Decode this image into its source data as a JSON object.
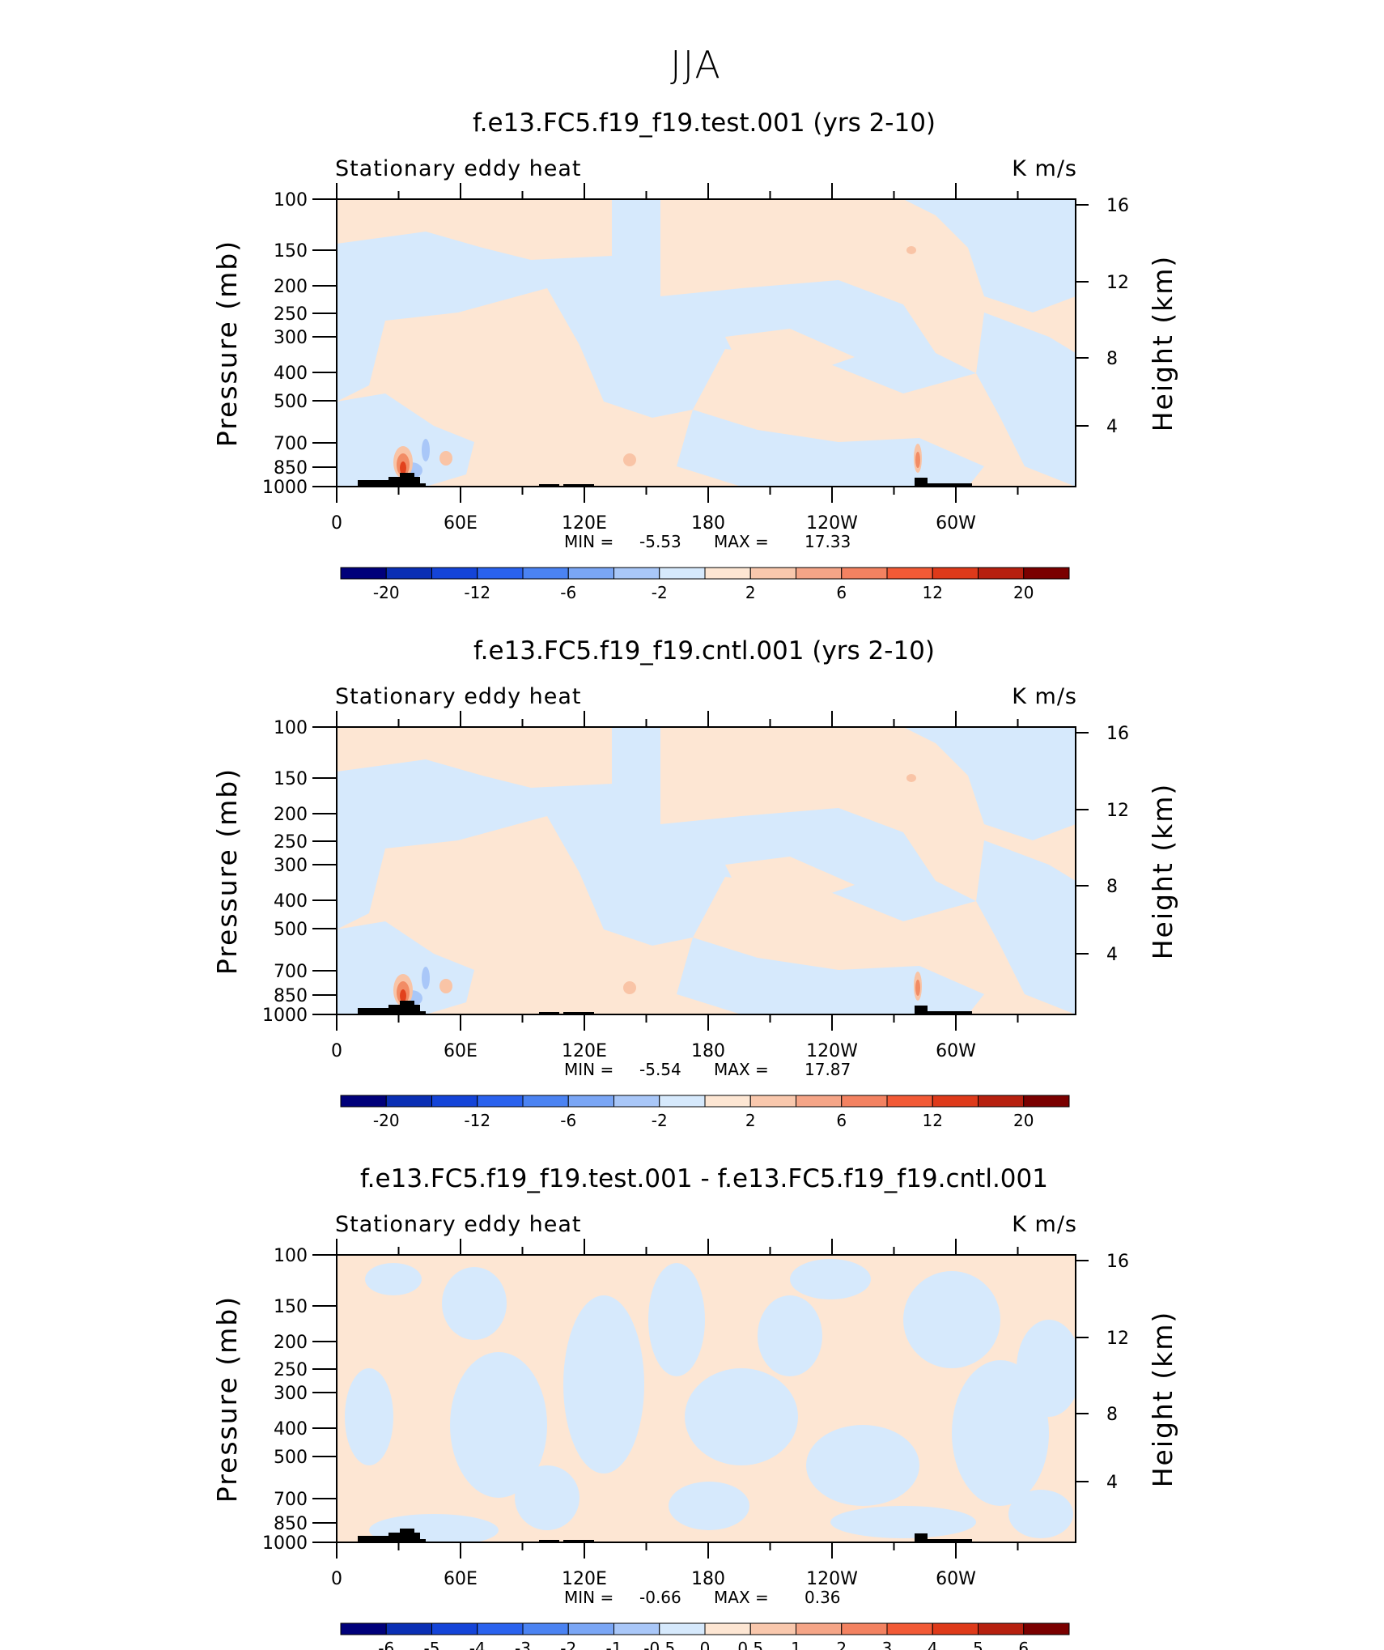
{
  "page_title": "JJA",
  "colors": {
    "blue_light": "#d6e9fc",
    "peach_light": "#fde6d3",
    "peach_mid": "#f9c4a6",
    "orange_mid": "#f28c65",
    "red_core": "#e2421d",
    "terrain": "#000000"
  },
  "colorbar_main": {
    "colors": [
      "#00007a",
      "#0a2fb4",
      "#1444d8",
      "#2a62ee",
      "#4b83f2",
      "#7aa6f5",
      "#a9c7f8",
      "#d6e9fc",
      "#fde6d3",
      "#f9c8ad",
      "#f5a587",
      "#f38261",
      "#f25a36",
      "#de3a1a",
      "#b6200f",
      "#7a0000"
    ],
    "labels": [
      "-20",
      "-12",
      "-6",
      "-2",
      "2",
      "6",
      "12",
      "20"
    ]
  },
  "colorbar_diff": {
    "colors": [
      "#00007a",
      "#0a2fb4",
      "#1444d8",
      "#2a62ee",
      "#4b83f2",
      "#7aa6f5",
      "#a9c7f8",
      "#d6e9fc",
      "#fde6d3",
      "#f9c8ad",
      "#f5a587",
      "#f38261",
      "#f25a36",
      "#de3a1a",
      "#b6200f",
      "#7a0000"
    ],
    "labels": [
      "-6",
      "-5",
      "-4",
      "-3",
      "-2",
      "-1",
      "-0.5",
      "0",
      "0.5",
      "1",
      "2",
      "3",
      "4",
      "5",
      "6"
    ]
  },
  "chart_data": [
    {
      "type": "heatmap",
      "title": "f.e13.FC5.f19_f19.test.001 (yrs 2-10)",
      "left_label": "Stationary eddy heat",
      "right_label": "K m/s",
      "ylabel": "Pressure (mb)",
      "ylabel_right": "Height (km)",
      "x_ticks": [
        "0",
        "60E",
        "120E",
        "180",
        "120W",
        "60W"
      ],
      "y_ticks": [
        "100",
        "150",
        "200",
        "250",
        "300",
        "400",
        "500",
        "700",
        "850",
        "1000"
      ],
      "y_right_ticks": [
        "16",
        "12",
        "8",
        "4"
      ],
      "stats": {
        "min_label": "MIN =",
        "min": "-5.53",
        "max_label": "MAX =",
        "max": "17.33"
      }
    },
    {
      "type": "heatmap",
      "title": "f.e13.FC5.f19_f19.cntl.001 (yrs 2-10)",
      "left_label": "Stationary eddy heat",
      "right_label": "K m/s",
      "ylabel": "Pressure (mb)",
      "ylabel_right": "Height (km)",
      "x_ticks": [
        "0",
        "60E",
        "120E",
        "180",
        "120W",
        "60W"
      ],
      "y_ticks": [
        "100",
        "150",
        "200",
        "250",
        "300",
        "400",
        "500",
        "700",
        "850",
        "1000"
      ],
      "y_right_ticks": [
        "16",
        "12",
        "8",
        "4"
      ],
      "stats": {
        "min_label": "MIN =",
        "min": "-5.54",
        "max_label": "MAX =",
        "max": "17.87"
      }
    },
    {
      "type": "heatmap",
      "title": "f.e13.FC5.f19_f19.test.001 - f.e13.FC5.f19_f19.cntl.001",
      "left_label": "Stationary eddy heat",
      "right_label": "K m/s",
      "ylabel": "Pressure (mb)",
      "ylabel_right": "Height (km)",
      "x_ticks": [
        "0",
        "60E",
        "120E",
        "180",
        "120W",
        "60W"
      ],
      "y_ticks": [
        "100",
        "150",
        "200",
        "250",
        "300",
        "400",
        "500",
        "700",
        "850",
        "1000"
      ],
      "y_right_ticks": [
        "16",
        "12",
        "8",
        "4"
      ],
      "stats": {
        "min_label": "MIN =",
        "min": "-0.66",
        "max_label": "MAX =",
        "max": "0.36"
      }
    }
  ]
}
